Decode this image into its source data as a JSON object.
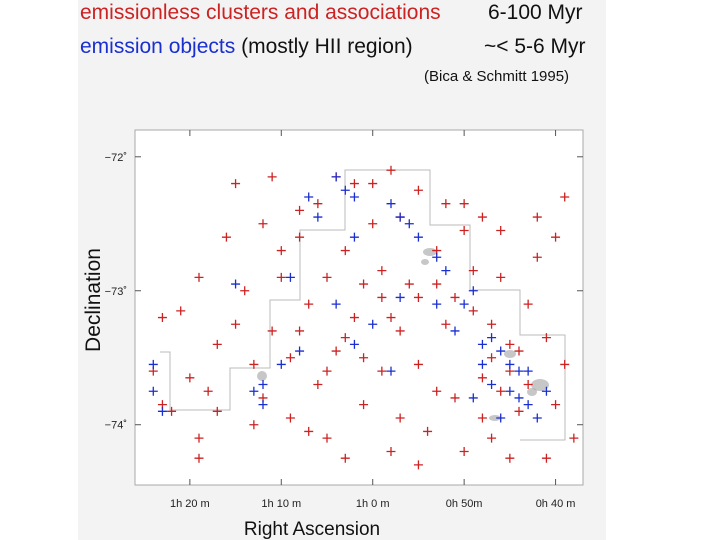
{
  "header": {
    "line1_label": "emissionless clusters and associations",
    "line1_age": "6-100 Myr",
    "line2_label": "emission objects",
    "line2_note": "(mostly HII region)",
    "line2_age": "~< 5-6 Myr",
    "citation": "(Bica & Schmitt 1995)"
  },
  "colors": {
    "red": "#cc2222",
    "blue": "#1a2fd0",
    "gray": "#888888"
  },
  "chart_data": {
    "type": "scatter",
    "title": "",
    "xlabel": "Right Ascension",
    "ylabel": "Declination",
    "x_ticks": [
      "1h 20 m",
      "1h 10 m",
      "1h 0 m",
      "0h 50m",
      "0h 40 m"
    ],
    "x_tick_values_min": [
      80,
      70,
      60,
      50,
      40
    ],
    "y_ticks": [
      "−72˚",
      "−73˚",
      "−74˚"
    ],
    "y_tick_values_deg": [
      -72,
      -73,
      -74
    ],
    "xlim_min": [
      86,
      37
    ],
    "ylim_deg": [
      -71.8,
      -74.45
    ],
    "series": [
      {
        "name": "emissionless clusters and associations (6-100 Myr)",
        "color": "red",
        "points": [
          [
            84,
            -73.6
          ],
          [
            83,
            -73.85
          ],
          [
            82,
            -73.9
          ],
          [
            83,
            -73.2
          ],
          [
            81,
            -73.15
          ],
          [
            79,
            -72.9
          ],
          [
            80,
            -73.65
          ],
          [
            78,
            -73.75
          ],
          [
            79,
            -74.1
          ],
          [
            77,
            -73.4
          ],
          [
            76,
            -72.6
          ],
          [
            75,
            -72.2
          ],
          [
            74,
            -73.0
          ],
          [
            73,
            -73.55
          ],
          [
            72,
            -73.8
          ],
          [
            73,
            -74.0
          ],
          [
            71,
            -73.3
          ],
          [
            70,
            -72.7
          ],
          [
            70,
            -72.9
          ],
          [
            69,
            -73.5
          ],
          [
            68,
            -72.6
          ],
          [
            67,
            -73.1
          ],
          [
            66,
            -73.7
          ],
          [
            65,
            -72.9
          ],
          [
            65,
            -74.1
          ],
          [
            64,
            -73.45
          ],
          [
            63,
            -72.7
          ],
          [
            62,
            -73.2
          ],
          [
            61,
            -73.85
          ],
          [
            60,
            -72.5
          ],
          [
            59,
            -72.85
          ],
          [
            59,
            -73.6
          ],
          [
            58,
            -73.2
          ],
          [
            57,
            -72.45
          ],
          [
            56,
            -72.95
          ],
          [
            55,
            -73.55
          ],
          [
            54,
            -74.05
          ],
          [
            53,
            -72.7
          ],
          [
            52,
            -73.25
          ],
          [
            51,
            -73.8
          ],
          [
            50,
            -72.55
          ],
          [
            49,
            -73.15
          ],
          [
            48,
            -73.65
          ],
          [
            47,
            -74.1
          ],
          [
            46,
            -72.9
          ],
          [
            45,
            -73.4
          ],
          [
            44,
            -73.9
          ],
          [
            43,
            -73.1
          ],
          [
            42,
            -72.75
          ],
          [
            41,
            -73.35
          ],
          [
            40,
            -73.85
          ],
          [
            39,
            -72.3
          ],
          [
            39,
            -73.55
          ],
          [
            38,
            -74.1
          ],
          [
            45,
            -73.6
          ],
          [
            46,
            -73.75
          ],
          [
            47,
            -73.5
          ],
          [
            48,
            -73.95
          ],
          [
            44,
            -73.45
          ],
          [
            43,
            -73.7
          ],
          [
            71,
            -72.15
          ],
          [
            64,
            -72.15
          ],
          [
            62,
            -72.2
          ],
          [
            60,
            -72.2
          ],
          [
            58,
            -72.1
          ],
          [
            66,
            -72.35
          ],
          [
            68,
            -72.4
          ],
          [
            72,
            -72.5
          ],
          [
            55,
            -72.25
          ],
          [
            52,
            -72.35
          ],
          [
            50,
            -72.35
          ],
          [
            48,
            -72.45
          ],
          [
            46,
            -72.55
          ],
          [
            42,
            -72.45
          ],
          [
            40,
            -72.6
          ],
          [
            75,
            -73.25
          ],
          [
            77,
            -73.9
          ],
          [
            79,
            -74.25
          ],
          [
            67,
            -74.05
          ],
          [
            63,
            -74.25
          ],
          [
            58,
            -74.2
          ],
          [
            55,
            -74.3
          ],
          [
            50,
            -74.2
          ],
          [
            45,
            -74.25
          ],
          [
            41,
            -74.25
          ],
          [
            69,
            -73.95
          ],
          [
            57,
            -73.95
          ],
          [
            53,
            -73.75
          ],
          [
            61,
            -73.5
          ],
          [
            59,
            -73.05
          ],
          [
            57,
            -73.3
          ],
          [
            55,
            -73.05
          ],
          [
            53,
            -72.95
          ],
          [
            51,
            -73.05
          ],
          [
            49,
            -72.85
          ],
          [
            47,
            -73.25
          ],
          [
            63,
            -73.35
          ],
          [
            65,
            -73.6
          ],
          [
            61,
            -72.95
          ],
          [
            68,
            -73.3
          ]
        ]
      },
      {
        "name": "emission objects (mostly HII region) (~< 5-6 Myr)",
        "color": "blue",
        "points": [
          [
            84,
            -73.55
          ],
          [
            84,
            -73.75
          ],
          [
            83,
            -73.9
          ],
          [
            73,
            -73.75
          ],
          [
            72,
            -73.7
          ],
          [
            72,
            -73.85
          ],
          [
            67,
            -72.3
          ],
          [
            66,
            -72.45
          ],
          [
            64,
            -72.15
          ],
          [
            63,
            -72.25
          ],
          [
            62,
            -72.3
          ],
          [
            62,
            -72.6
          ],
          [
            64,
            -73.1
          ],
          [
            69,
            -72.9
          ],
          [
            58,
            -72.35
          ],
          [
            57,
            -72.45
          ],
          [
            56,
            -72.5
          ],
          [
            55,
            -72.6
          ],
          [
            53,
            -72.75
          ],
          [
            52,
            -72.85
          ],
          [
            50,
            -73.1
          ],
          [
            49,
            -73.0
          ],
          [
            47,
            -73.35
          ],
          [
            46,
            -73.45
          ],
          [
            45,
            -73.55
          ],
          [
            44,
            -73.6
          ],
          [
            45,
            -73.75
          ],
          [
            44,
            -73.8
          ],
          [
            43,
            -73.85
          ],
          [
            42,
            -73.95
          ],
          [
            46,
            -73.95
          ],
          [
            47,
            -73.7
          ],
          [
            48,
            -73.55
          ],
          [
            43,
            -73.6
          ],
          [
            41,
            -73.75
          ],
          [
            57,
            -73.05
          ],
          [
            60,
            -73.25
          ],
          [
            62,
            -73.4
          ],
          [
            51,
            -73.3
          ],
          [
            53,
            -73.1
          ],
          [
            75,
            -72.95
          ],
          [
            70,
            -73.55
          ],
          [
            68,
            -73.45
          ],
          [
            48,
            -73.4
          ],
          [
            49,
            -73.8
          ],
          [
            58,
            -73.6
          ]
        ]
      }
    ]
  }
}
